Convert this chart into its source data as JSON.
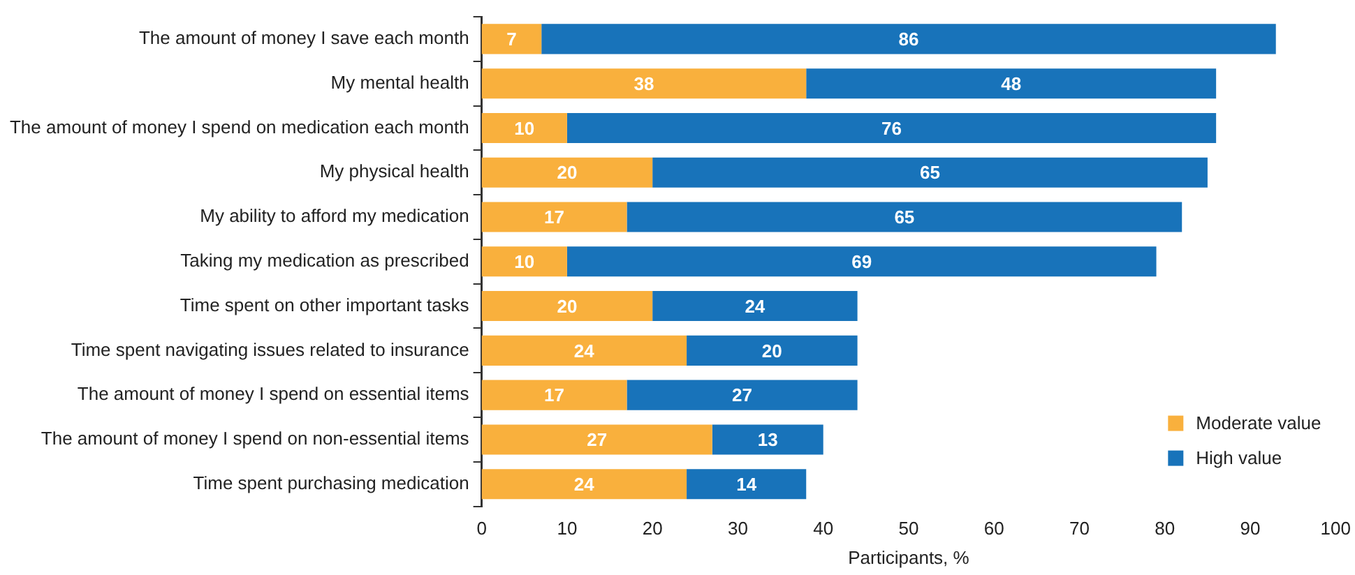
{
  "chart_data": {
    "type": "bar",
    "orientation": "horizontal",
    "stacked": true,
    "xlabel": "Participants, %",
    "categories": [
      "The amount of money I save each month",
      "My mental health",
      "The amount of money I spend on medication each month",
      "My physical health",
      "My ability to afford my medication",
      "Taking my medication as prescribed",
      "Time spent on other important tasks",
      "Time spent navigating issues related to insurance",
      "The amount of money I spend on essential items",
      "The amount of money I spend on non-essential items",
      "Time spent purchasing medication"
    ],
    "series": [
      {
        "name": "Moderate value",
        "color": "#f9b03d",
        "values": [
          7,
          38,
          10,
          20,
          17,
          10,
          20,
          24,
          17,
          27,
          24
        ]
      },
      {
        "name": "High value",
        "color": "#1873ba",
        "values": [
          86,
          48,
          76,
          65,
          65,
          69,
          24,
          20,
          27,
          13,
          14
        ]
      }
    ],
    "xlim": [
      0,
      100
    ],
    "xticks": [
      0,
      10,
      20,
      30,
      40,
      50,
      60,
      70,
      80,
      90,
      100
    ],
    "data_labels": true,
    "grid": false,
    "legend": "bottom right"
  }
}
